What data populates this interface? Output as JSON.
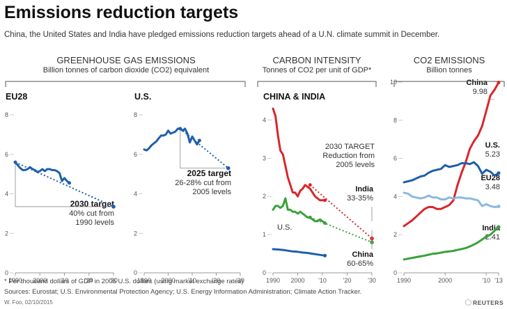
{
  "title": "Emissions reduction targets",
  "subtitle": "China, the United States and India have pledged emissions reduction targets ahead of a U.N. climate summit in December.",
  "sections": [
    {
      "title": "GREENHOUSE GAS EMISSIONS",
      "subtitle": "Billion tonnes of carbon dioxide (CO2) equivalent"
    },
    {
      "title": "CARBON INTENSITY",
      "subtitle": "Tonnes of CO2 per unit of GDP*"
    },
    {
      "title": "CO2 EMISSIONS",
      "subtitle": "Billion tonnes"
    }
  ],
  "colors": {
    "eu_us": "#1f5faa",
    "china": "#d9262c",
    "india": "#3aa13a",
    "eu28_light": "#8db8df",
    "grid": "#cccccc"
  },
  "chart_data": [
    {
      "type": "line",
      "title": "EU28",
      "ylim": [
        0,
        8
      ],
      "yticks": [
        "0",
        "2",
        "4",
        "6",
        "8"
      ],
      "xlim": [
        1990,
        2030
      ],
      "xticks": [
        "1990",
        "2000",
        "'10",
        "'20",
        "'30"
      ],
      "series": [
        {
          "x": [
            1990,
            1991,
            1992,
            1993,
            1994,
            1995,
            1996,
            1997,
            1998,
            1999,
            2000,
            2001,
            2002,
            2003,
            2004,
            2005,
            2006,
            2007,
            2008,
            2009,
            2010,
            2011,
            2012
          ],
          "values": [
            5.6,
            5.45,
            5.3,
            5.2,
            5.2,
            5.25,
            5.35,
            5.25,
            5.2,
            5.1,
            5.15,
            5.25,
            5.15,
            5.25,
            5.25,
            5.2,
            5.2,
            5.15,
            5.05,
            4.65,
            4.8,
            4.65,
            4.55
          ]
        }
      ],
      "target": {
        "x": [
          1990,
          2030
        ],
        "values": [
          5.6,
          3.35
        ]
      },
      "annotation": {
        "heading": "2030 target",
        "lines": [
          "40% cut from",
          "1990 levels"
        ]
      }
    },
    {
      "type": "line",
      "title": "U.S.",
      "ylim": [
        0,
        8
      ],
      "yticks": [
        "0",
        "2",
        "4",
        "6",
        "8"
      ],
      "xlim": [
        1990,
        2030
      ],
      "xticks": [
        "1990",
        "2000",
        "'10",
        "'20",
        "'30"
      ],
      "series": [
        {
          "x": [
            1990,
            1991,
            1992,
            1993,
            1994,
            1995,
            1996,
            1997,
            1998,
            1999,
            2000,
            2001,
            2002,
            2003,
            2004,
            2005,
            2006,
            2007,
            2008,
            2009,
            2010,
            2011,
            2012,
            2013
          ],
          "values": [
            6.25,
            6.2,
            6.3,
            6.45,
            6.55,
            6.65,
            6.8,
            6.95,
            6.95,
            7.0,
            7.2,
            7.05,
            7.1,
            7.15,
            7.3,
            7.3,
            7.2,
            7.3,
            7.05,
            6.6,
            6.9,
            6.7,
            6.5,
            6.7
          ]
        }
      ],
      "target": {
        "x": [
          2005,
          2025
        ],
        "values": [
          7.3,
          5.3
        ]
      },
      "annotation": {
        "heading": "2025 target",
        "lines": [
          "26-28% cut from",
          "2005 levels"
        ]
      }
    },
    {
      "type": "line",
      "title": "CHINA & INDIA",
      "ylim": [
        0,
        4.5
      ],
      "yticks": [
        "0",
        "1",
        "2",
        "3",
        "4"
      ],
      "xlim": [
        1990,
        2030
      ],
      "xticks": [
        "1990",
        "2000",
        "'10",
        "'20",
        "'30"
      ],
      "series": [
        {
          "name": "China",
          "x": [
            1990,
            1991,
            1992,
            1993,
            1994,
            1995,
            1996,
            1997,
            1998,
            1999,
            2000,
            2001,
            2002,
            2003,
            2004,
            2005,
            2006,
            2007,
            2008,
            2009,
            2010,
            2011
          ],
          "values": [
            4.3,
            4.1,
            3.6,
            3.2,
            3.1,
            2.8,
            2.5,
            2.3,
            2.1,
            2.1,
            2.0,
            2.15,
            2.2,
            2.3,
            2.25,
            2.2,
            2.1,
            2.0,
            1.95,
            1.9,
            1.9,
            1.9
          ]
        },
        {
          "name": "India",
          "x": [
            1990,
            1991,
            1992,
            1993,
            1994,
            1995,
            1996,
            1997,
            1998,
            1999,
            2000,
            2001,
            2002,
            2003,
            2004,
            2005,
            2006,
            2007,
            2008,
            2009,
            2010,
            2011
          ],
          "values": [
            1.65,
            1.75,
            1.75,
            1.7,
            1.75,
            1.95,
            1.65,
            1.65,
            1.6,
            1.6,
            1.55,
            1.6,
            1.55,
            1.5,
            1.45,
            1.45,
            1.4,
            1.35,
            1.35,
            1.4,
            1.35,
            1.3
          ]
        },
        {
          "name": "U.S.",
          "x": [
            1990,
            1992,
            1994,
            1996,
            1998,
            2000,
            2002,
            2004,
            2006,
            2008,
            2010,
            2011
          ],
          "values": [
            0.62,
            0.61,
            0.6,
            0.58,
            0.56,
            0.55,
            0.53,
            0.52,
            0.5,
            0.48,
            0.46,
            0.45
          ]
        }
      ],
      "targets": [
        {
          "name": "China",
          "x": [
            2005,
            2030
          ],
          "values": [
            2.3,
            0.9
          ]
        },
        {
          "name": "India",
          "x": [
            2005,
            2030
          ],
          "values": [
            1.45,
            0.8
          ]
        }
      ],
      "annotation": {
        "lines": [
          "2030 TARGET",
          "Reduction from",
          "2005 levels"
        ]
      },
      "labels": {
        "india": {
          "name": "India",
          "value": "33-35%"
        },
        "china": {
          "name": "China",
          "value": "60-65%"
        },
        "us": "U.S."
      }
    },
    {
      "type": "line",
      "title": "",
      "ylim": [
        0,
        10
      ],
      "yticks": [
        "0",
        "2",
        "4",
        "6",
        "8",
        "10"
      ],
      "xlim": [
        1990,
        2013
      ],
      "xticks": [
        "1990",
        "2000",
        "'10",
        "'13"
      ],
      "series": [
        {
          "name": "China",
          "x": [
            1990,
            1991,
            1992,
            1993,
            1994,
            1995,
            1996,
            1997,
            1998,
            1999,
            2000,
            2001,
            2002,
            2003,
            2004,
            2005,
            2006,
            2007,
            2008,
            2009,
            2010,
            2011,
            2012,
            2013
          ],
          "values": [
            2.45,
            2.6,
            2.75,
            2.95,
            3.15,
            3.35,
            3.45,
            3.45,
            3.35,
            3.35,
            3.45,
            3.55,
            3.8,
            4.6,
            5.25,
            5.8,
            6.5,
            6.9,
            7.2,
            7.7,
            8.5,
            9.3,
            9.6,
            9.98
          ]
        },
        {
          "name": "U.S.",
          "x": [
            1990,
            1991,
            1992,
            1993,
            1994,
            1995,
            1996,
            1997,
            1998,
            1999,
            2000,
            2001,
            2002,
            2003,
            2004,
            2005,
            2006,
            2007,
            2008,
            2009,
            2010,
            2011,
            2012,
            2013
          ],
          "values": [
            4.75,
            4.8,
            4.85,
            4.95,
            5.05,
            5.1,
            5.25,
            5.35,
            5.4,
            5.45,
            5.65,
            5.55,
            5.6,
            5.65,
            5.75,
            5.75,
            5.7,
            5.8,
            5.6,
            5.2,
            5.4,
            5.3,
            5.1,
            5.23
          ]
        },
        {
          "name": "EU28",
          "x": [
            1990,
            1991,
            1992,
            1993,
            1994,
            1995,
            1996,
            1997,
            1998,
            1999,
            2000,
            2001,
            2002,
            2003,
            2004,
            2005,
            2006,
            2007,
            2008,
            2009,
            2010,
            2011,
            2012,
            2013
          ],
          "values": [
            4.2,
            4.15,
            4.0,
            3.95,
            3.9,
            3.95,
            4.05,
            3.95,
            3.95,
            3.85,
            3.85,
            3.95,
            3.9,
            3.95,
            3.95,
            3.9,
            3.9,
            3.85,
            3.8,
            3.5,
            3.6,
            3.5,
            3.45,
            3.48
          ]
        },
        {
          "name": "India",
          "x": [
            1990,
            1991,
            1992,
            1993,
            1994,
            1995,
            1996,
            1997,
            1998,
            1999,
            2000,
            2001,
            2002,
            2003,
            2004,
            2005,
            2006,
            2007,
            2008,
            2009,
            2010,
            2011,
            2012,
            2013
          ],
          "values": [
            0.7,
            0.74,
            0.78,
            0.82,
            0.86,
            0.9,
            0.95,
            1.0,
            1.02,
            1.06,
            1.1,
            1.12,
            1.15,
            1.2,
            1.25,
            1.3,
            1.38,
            1.48,
            1.6,
            1.75,
            1.9,
            2.0,
            2.2,
            2.41
          ]
        }
      ],
      "labels": {
        "china": {
          "name": "China",
          "value": "9.98"
        },
        "us": {
          "name": "U.S.",
          "value": "5.23"
        },
        "eu28": {
          "name": "EU28",
          "value": "3.48"
        },
        "india": {
          "name": "India",
          "value": "2.41"
        }
      }
    }
  ],
  "footnote": "* Per thousand dollars of GDP in 2005 U.S. dollars (using market exchange rates)",
  "sources": "Sources: Eurostat; U.S. Environmental Protection Agency; U.S. Energy Information Administration; Climate Action Tracker.",
  "credit": "W. Foo, 02/10/2015",
  "logo": "REUTERS"
}
